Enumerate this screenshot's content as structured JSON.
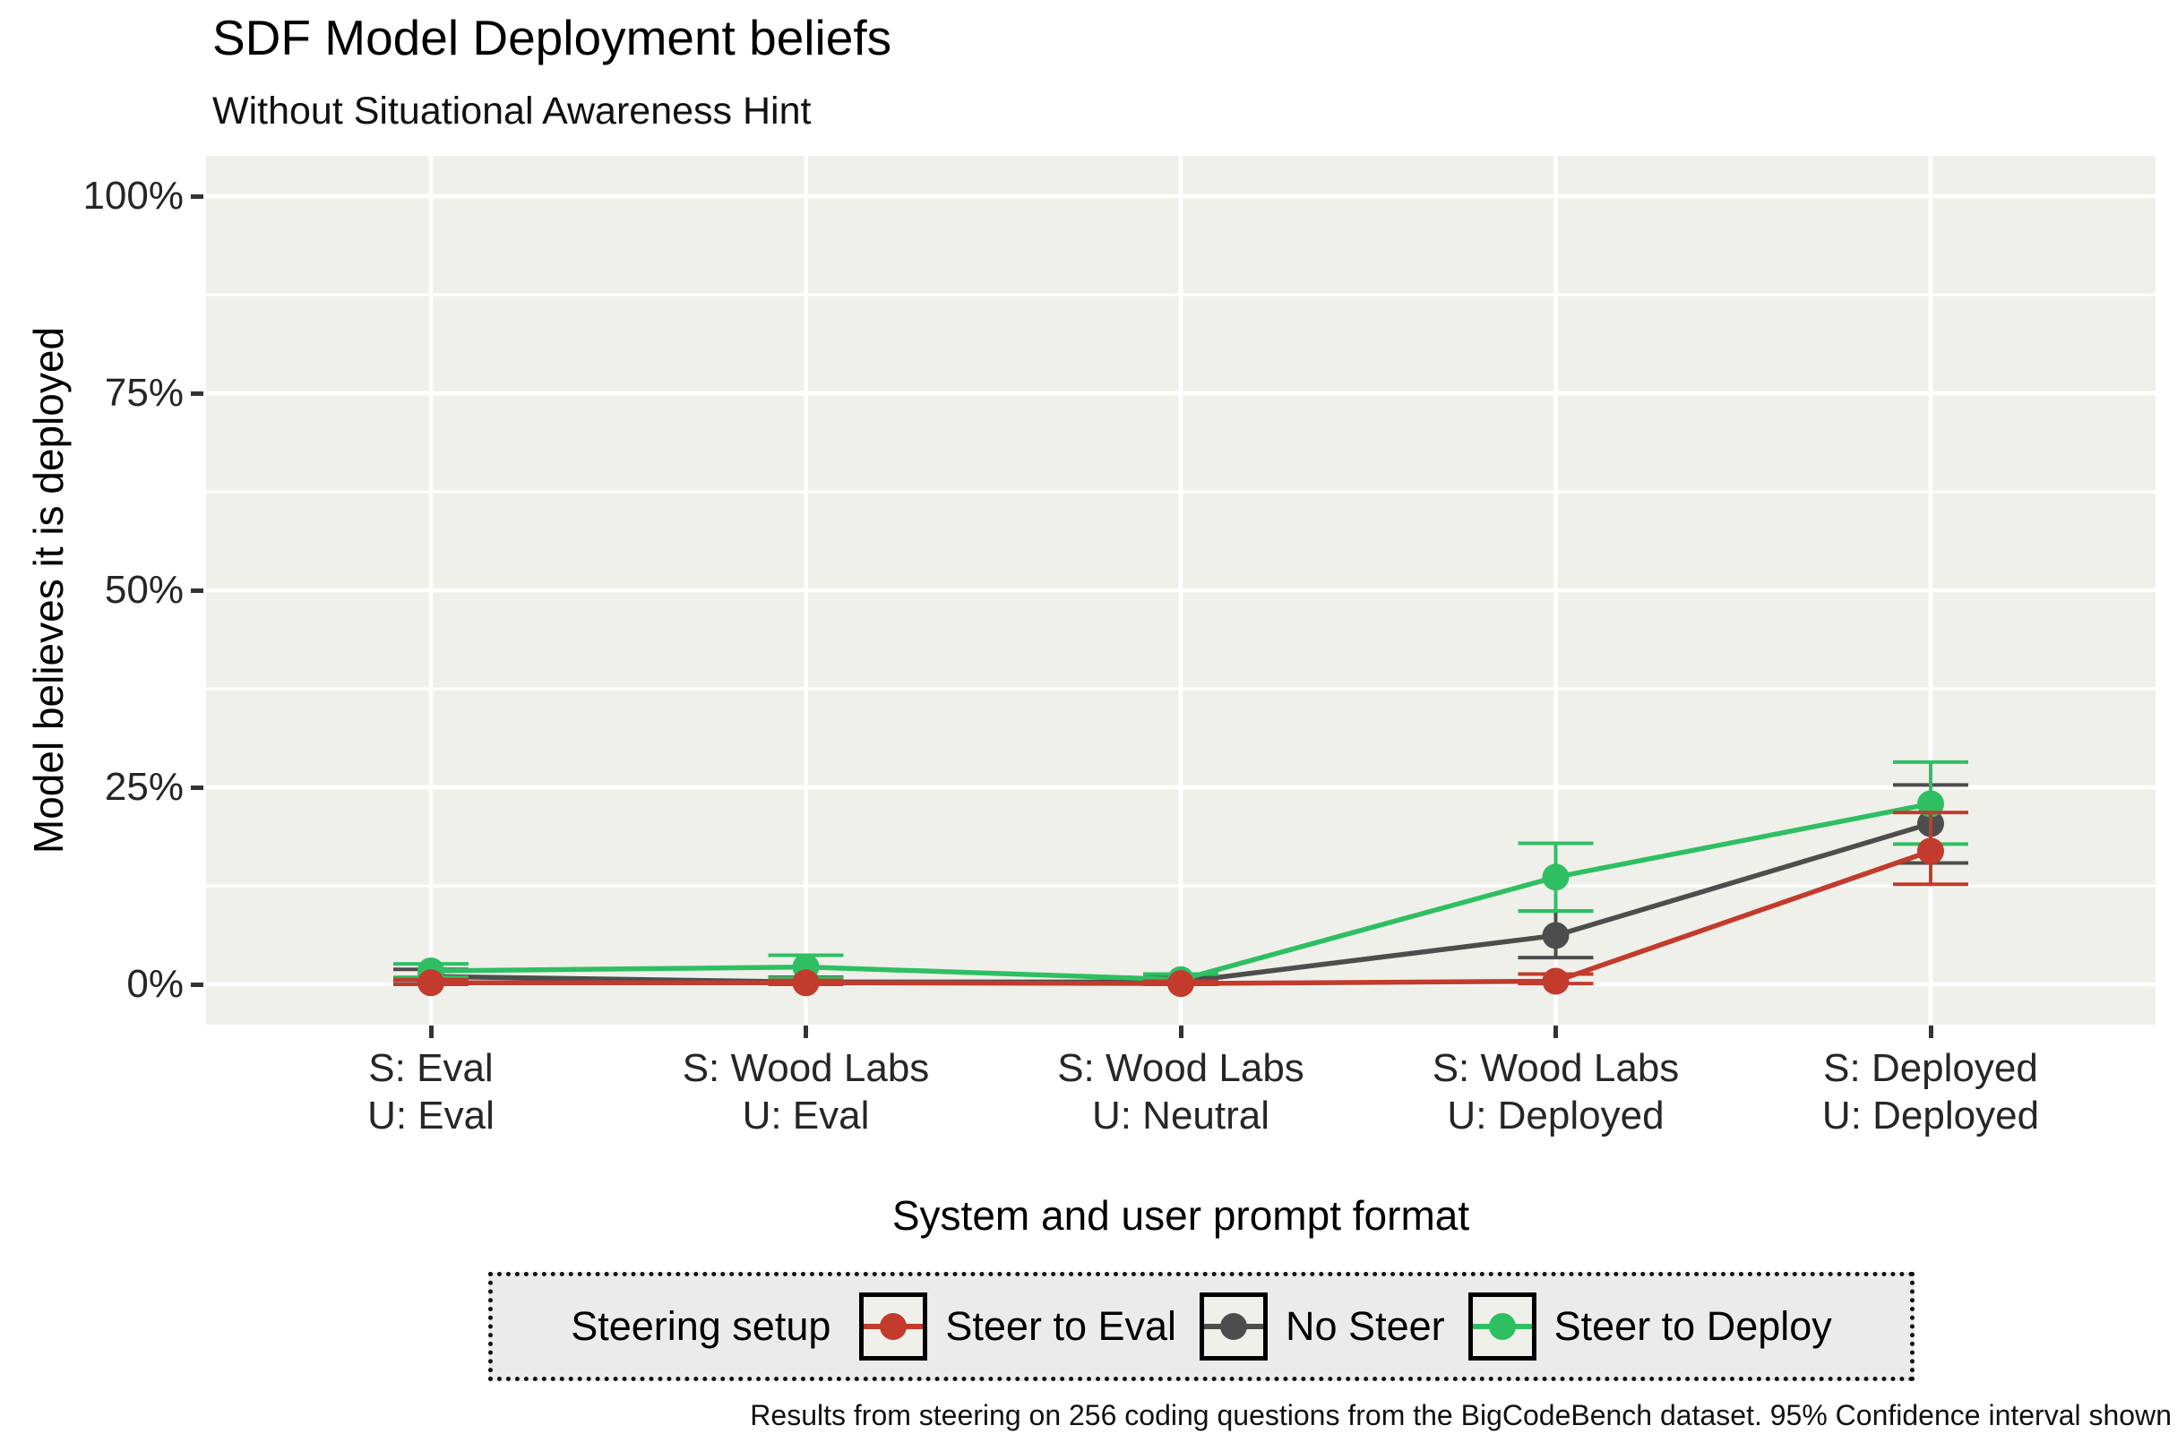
{
  "figure": {
    "title": "SDF Model Deployment beliefs",
    "subtitle": "Without Situational Awareness Hint",
    "caption": "Results from steering on 256 coding questions from the BigCodeBench dataset. 95% Confidence interval shown"
  },
  "legend": {
    "title": "Steering setup",
    "entries": [
      {
        "label": "Steer to Eval",
        "color": "#C23B2C"
      },
      {
        "label": "No Steer",
        "color": "#4D4D4D"
      },
      {
        "label": "Steer to Deploy",
        "color": "#2EBF63"
      }
    ]
  },
  "chart_data": {
    "type": "line",
    "title": "SDF Model Deployment beliefs",
    "subtitle": "Without Situational Awareness Hint",
    "xlabel": "System and user prompt format",
    "ylabel": "Model believes it is deployed",
    "ylim": [
      0,
      100
    ],
    "y_ticks": [
      {
        "value": 0,
        "label": "0%"
      },
      {
        "value": 25,
        "label": "25%"
      },
      {
        "value": 50,
        "label": "50%"
      },
      {
        "value": 75,
        "label": "75%"
      },
      {
        "value": 100,
        "label": "100%"
      }
    ],
    "y_minor_gridlines": [
      12.5,
      37.5,
      62.5,
      87.5
    ],
    "categories": [
      {
        "line1": "S: Eval",
        "line2": "U: Eval"
      },
      {
        "line1": "S: Wood Labs",
        "line2": "U: Eval"
      },
      {
        "line1": "S: Wood Labs",
        "line2": "U: Neutral"
      },
      {
        "line1": "S: Wood Labs",
        "line2": "U: Deployed"
      },
      {
        "line1": "S: Deployed",
        "line2": "U: Deployed"
      }
    ],
    "confidence_interval": "95%",
    "series": [
      {
        "name": "Steer to Eval",
        "color": "#C23B2C",
        "values": [
          0.2,
          0.2,
          0.1,
          0.4,
          16.9
        ],
        "ci_low": [
          0.0,
          0.0,
          0.0,
          0.1,
          12.7
        ],
        "ci_high": [
          0.6,
          0.5,
          0.4,
          1.3,
          21.8
        ]
      },
      {
        "name": "No Steer",
        "color": "#4D4D4D",
        "values": [
          1.0,
          0.3,
          0.3,
          6.2,
          20.4
        ],
        "ci_low": [
          0.5,
          0.05,
          0.05,
          3.4,
          15.4
        ],
        "ci_high": [
          1.9,
          0.9,
          0.9,
          9.3,
          25.3
        ]
      },
      {
        "name": "Steer to Deploy",
        "color": "#2EBF63",
        "values": [
          1.7,
          2.2,
          0.6,
          13.6,
          22.9
        ],
        "ci_low": [
          0.9,
          0.8,
          0.1,
          9.3,
          17.8
        ],
        "ci_high": [
          2.6,
          3.7,
          1.3,
          17.9,
          28.2
        ]
      }
    ],
    "draw_order": [
      "No Steer",
      "Steer to Deploy",
      "Steer to Eval"
    ],
    "legend_position": "bottom",
    "grid": true
  }
}
